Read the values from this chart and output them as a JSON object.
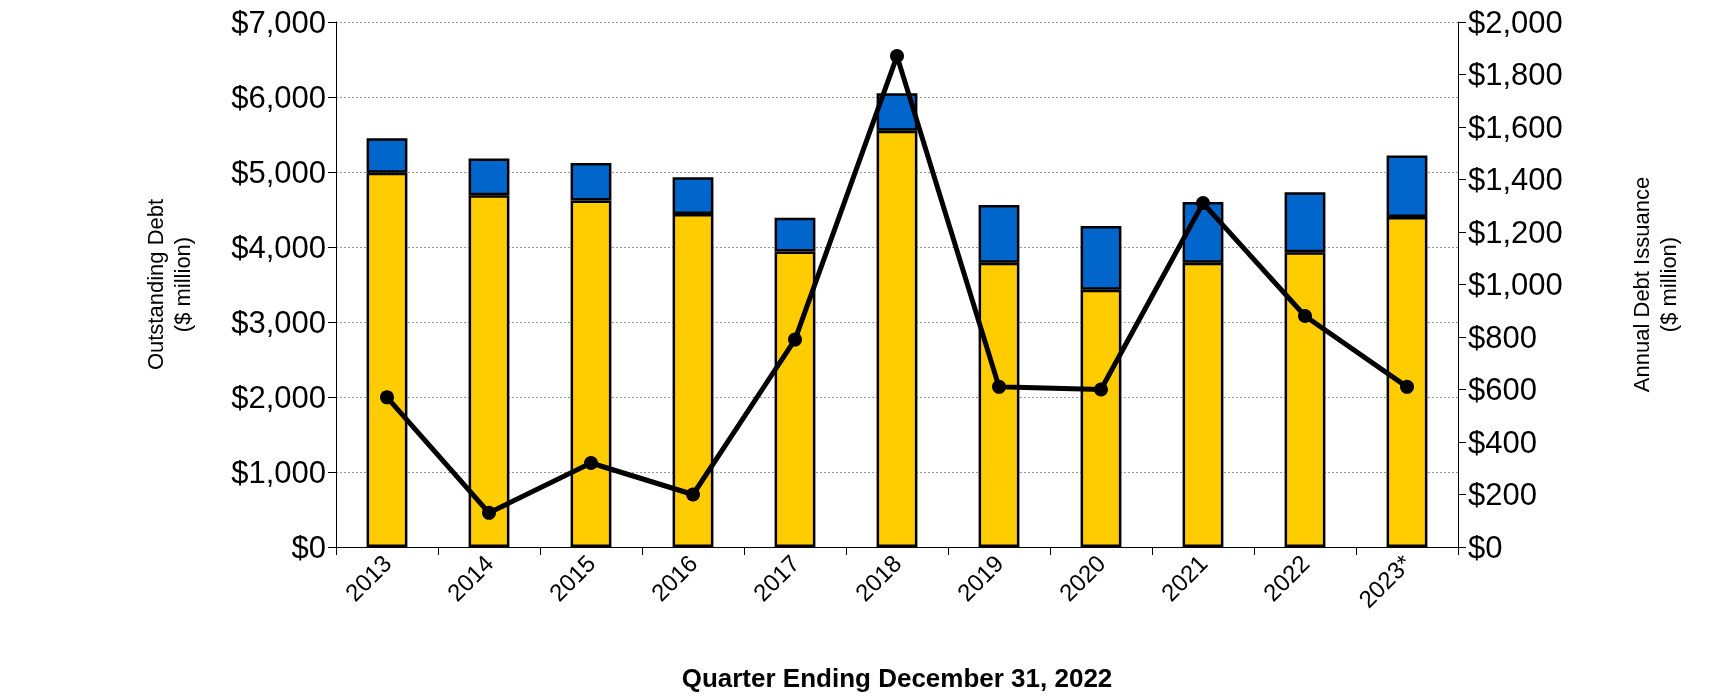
{
  "chart_data": {
    "type": "bar",
    "xlabel": "Quarter Ending December 31, 2022",
    "ylabel": "Outstanding Debt\n($ million)",
    "y2label": "Annual Debt Issuance\n($ million)",
    "categories": [
      "2013",
      "2014",
      "2015",
      "2016",
      "2017",
      "2018",
      "2019",
      "2020",
      "2021",
      "2022",
      "2023*"
    ],
    "stacked": true,
    "series": [
      {
        "color": "#ffcc00",
        "values": [
          4990,
          4690,
          4620,
          4440,
          3940,
          5550,
          3790,
          3430,
          3790,
          3930,
          4400
        ]
      },
      {
        "color": "#0066cc",
        "values": [
          460,
          490,
          500,
          490,
          450,
          500,
          770,
          850,
          810,
          800,
          820
        ]
      },
      {
        "type": "line",
        "axis": "y2",
        "color": "#000000",
        "values": [
          570,
          130,
          320,
          200,
          790,
          1870,
          610,
          600,
          1310,
          880,
          610
        ]
      }
    ],
    "ylim": [
      0,
      7000
    ],
    "yticks": [
      {
        "value": 0,
        "label": "$0"
      },
      {
        "value": 1000,
        "label": "$1,000"
      },
      {
        "value": 2000,
        "label": "$2,000"
      },
      {
        "value": 3000,
        "label": "$3,000"
      },
      {
        "value": 4000,
        "label": "$4,000"
      },
      {
        "value": 5000,
        "label": "$5,000"
      },
      {
        "value": 6000,
        "label": "$6,000"
      },
      {
        "value": 7000,
        "label": "$7,000"
      }
    ],
    "y2lim": [
      0,
      2000
    ],
    "y2ticks": [
      {
        "value": 0,
        "label": "$0"
      },
      {
        "value": 200,
        "label": "$200"
      },
      {
        "value": 400,
        "label": "$400"
      },
      {
        "value": 600,
        "label": "$600"
      },
      {
        "value": 800,
        "label": "$800"
      },
      {
        "value": 1000,
        "label": "$1,000"
      },
      {
        "value": 1200,
        "label": "$1,200"
      },
      {
        "value": 1400,
        "label": "$1,400"
      },
      {
        "value": 1600,
        "label": "$1,600"
      },
      {
        "value": 1800,
        "label": "$1,800"
      },
      {
        "value": 2000,
        "label": "$2,000"
      }
    ],
    "grid": "y",
    "marker": "circle",
    "line_style": "solid"
  }
}
